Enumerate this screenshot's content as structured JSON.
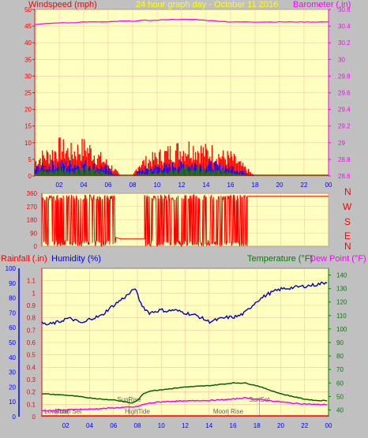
{
  "header": {
    "left_label": "Windspeed (mph)",
    "center_label": "24 hour graph day - October 11 2016",
    "right_label": "Barometer (.in)"
  },
  "dir_panel": {
    "compass_letters": [
      "N",
      "W",
      "S",
      "E",
      "N"
    ]
  },
  "bottom_header": {
    "rainfall_label": "Rainfall (.in)",
    "humidity_label": "Humidity (%)",
    "temperature_label": "Temperature (°F)",
    "dewpoint_label": "Dew Point (°F)"
  },
  "colors": {
    "bg": "#c0c0c0",
    "plot": "#ffffc0",
    "grid": "#f4c4a4",
    "wind_gust": "#ff0000",
    "wind_avg": "#0000ff",
    "wind_low": "#008000",
    "barometer": "#ff00ff",
    "humidity": "#0000c8",
    "temperature": "#006400",
    "dewpoint": "#ff00ff",
    "rain": "#ff0000",
    "direction": "#ff0000",
    "axis_red": "#ff0000",
    "axis_pink": "#ff00ff",
    "axis_blue": "#0000ff",
    "axis_green": "#008000"
  },
  "chart_data": [
    {
      "type": "line",
      "name": "wind_barometer",
      "x_ticks": [
        "02",
        "04",
        "06",
        "08",
        "10",
        "12",
        "14",
        "16",
        "18",
        "20",
        "22",
        "00"
      ],
      "x_range_hours": [
        0,
        24
      ],
      "wind_ylim": [
        0,
        50
      ],
      "wind_ticks": [
        0,
        5,
        10,
        15,
        20,
        25,
        30,
        35,
        40,
        45,
        50
      ],
      "baro_ylim": [
        28.6,
        30.6
      ],
      "baro_ticks": [
        "28.6",
        "28.8",
        "29",
        "29.2",
        "29.4",
        "29.6",
        "29.8",
        "30",
        "30.2",
        "30.4",
        "30.6"
      ],
      "barometer": {
        "x": [
          0,
          1,
          2,
          3,
          4,
          5,
          6,
          7,
          8,
          9,
          10,
          11,
          12,
          13,
          14,
          15,
          16,
          17,
          18,
          19,
          20,
          21,
          22,
          23,
          24
        ],
        "y": [
          30.42,
          30.43,
          30.44,
          30.44,
          30.45,
          30.45,
          30.45,
          30.46,
          30.46,
          30.47,
          30.47,
          30.48,
          30.48,
          30.48,
          30.47,
          30.46,
          30.45,
          30.45,
          30.45,
          30.45,
          30.45,
          30.45,
          30.45,
          30.45,
          30.45
        ]
      },
      "wind_gust_envelope": {
        "x": [
          0,
          0.5,
          1,
          1.5,
          2,
          2.5,
          3,
          3.5,
          4,
          4.5,
          5,
          5.5,
          6,
          6.5,
          7,
          7.5,
          8,
          8.5,
          9,
          9.5,
          10,
          10.5,
          11,
          11.5,
          12,
          12.5,
          13,
          13.5,
          14,
          14.5,
          15,
          15.5,
          16,
          16.5,
          17,
          17.5,
          18,
          24
        ],
        "y": [
          6,
          8,
          9,
          10,
          12,
          11,
          10,
          11,
          12,
          11,
          9,
          7,
          5,
          3,
          0,
          0,
          0,
          5,
          6,
          7,
          8,
          9,
          10,
          11,
          11,
          12,
          12,
          11,
          10,
          10,
          9,
          8,
          8,
          6,
          4,
          2,
          0,
          0
        ]
      },
      "wind_avg_envelope": {
        "x": [
          0,
          0.5,
          1,
          1.5,
          2,
          2.5,
          3,
          3.5,
          4,
          4.5,
          5,
          5.5,
          6,
          6.5,
          7,
          7.5,
          8,
          8.5,
          9,
          9.5,
          10,
          10.5,
          11,
          11.5,
          12,
          12.5,
          13,
          13.5,
          14,
          14.5,
          15,
          15.5,
          16,
          16.5,
          17,
          17.5,
          18,
          24
        ],
        "y": [
          3,
          4,
          4,
          5,
          5,
          5,
          5,
          5,
          5,
          5,
          4,
          4,
          3,
          1,
          0,
          0,
          0,
          2,
          3,
          3,
          4,
          4,
          4,
          5,
          5,
          5,
          5,
          5,
          5,
          5,
          4,
          4,
          4,
          3,
          2,
          1,
          0,
          0
        ]
      },
      "wind_low_envelope": {
        "x": [
          0,
          0.5,
          1,
          1.5,
          2,
          2.5,
          3,
          3.5,
          4,
          4.5,
          5,
          5.5,
          6,
          6.5,
          7,
          7.5,
          8,
          8.5,
          9,
          9.5,
          10,
          10.5,
          11,
          11.5,
          12,
          12.5,
          13,
          13.5,
          14,
          14.5,
          15,
          15.5,
          16,
          16.5,
          17,
          17.5,
          18,
          24
        ],
        "y": [
          1,
          2,
          2,
          2,
          3,
          3,
          2,
          3,
          3,
          3,
          2,
          2,
          1,
          0,
          0,
          0,
          0,
          1,
          1,
          2,
          2,
          2,
          2,
          2,
          3,
          3,
          3,
          3,
          2,
          2,
          2,
          2,
          2,
          1,
          1,
          0,
          0,
          0
        ]
      }
    },
    {
      "type": "line",
      "name": "wind_direction",
      "ylim": [
        0,
        360
      ],
      "y_ticks": [
        0,
        90,
        180,
        270,
        360
      ],
      "x_range_hours": [
        0,
        24
      ],
      "segments": [
        {
          "kind": "variable",
          "x_start": 0,
          "x_end": 6.2,
          "min": 0,
          "max": 350
        },
        {
          "kind": "steady",
          "x": [
            6.2,
            6.6,
            8.2,
            8.6
          ],
          "y": [
            60,
            50,
            50,
            50
          ]
        },
        {
          "kind": "variable",
          "x_start": 8.6,
          "x_end": 17.2,
          "min": 0,
          "max": 350
        },
        {
          "kind": "steady",
          "x": [
            17.2,
            17.5,
            24
          ],
          "y": [
            340,
            340,
            340
          ]
        }
      ]
    },
    {
      "type": "line",
      "name": "humidity_temp",
      "x_ticks": [
        "02",
        "04",
        "06",
        "08",
        "10",
        "12",
        "14",
        "16",
        "18",
        "20",
        "22",
        "00"
      ],
      "x_range_hours": [
        0,
        24
      ],
      "humidity_ylim": [
        0,
        100
      ],
      "humidity_ticks": [
        0,
        10,
        20,
        30,
        40,
        50,
        60,
        70,
        80,
        90,
        100
      ],
      "rain_ylim": [
        0,
        1.2
      ],
      "rain_ticks": [
        "0",
        "0.1",
        "0.2",
        "0.3",
        "0.4",
        "0.5",
        "0.6",
        "0.7",
        "0.8",
        "0.9",
        "1",
        "1.1"
      ],
      "temp_ylim": [
        35,
        145
      ],
      "temp_ticks": [
        40,
        50,
        60,
        70,
        80,
        90,
        100,
        110,
        120,
        130,
        140
      ],
      "humidity": {
        "x": [
          0,
          0.5,
          1,
          1.5,
          2,
          2.5,
          3,
          3.5,
          4,
          4.5,
          5,
          5.5,
          6,
          6.5,
          7,
          7.5,
          7.8,
          8,
          8.3,
          8.6,
          9,
          9.5,
          10,
          10.5,
          11,
          11.5,
          12,
          12.5,
          13,
          13.5,
          14,
          14.5,
          15,
          15.5,
          16,
          16.5,
          17,
          17.5,
          18,
          19,
          20,
          21,
          22,
          23,
          24
        ],
        "y": [
          63,
          62,
          63,
          64,
          66,
          66,
          64,
          63,
          66,
          67,
          68,
          72,
          75,
          78,
          81,
          84,
          87,
          82,
          76,
          73,
          70,
          71,
          72,
          71,
          72,
          71,
          70,
          69,
          68,
          66,
          64,
          65,
          66,
          67,
          67,
          68,
          70,
          74,
          78,
          83,
          86,
          87,
          88,
          89,
          91
        ]
      },
      "temperature": {
        "x": [
          0,
          1,
          2,
          3,
          4,
          5,
          6,
          7,
          7.5,
          8,
          8.5,
          9,
          10,
          11,
          12,
          13,
          14,
          15,
          16,
          17,
          18,
          19,
          20,
          21,
          22,
          23,
          24
        ],
        "y": [
          52,
          51.5,
          51,
          50,
          49,
          48,
          47.5,
          46,
          45,
          47,
          52,
          54,
          55,
          56,
          57,
          57.5,
          58,
          59,
          60,
          60,
          58,
          55,
          52,
          50,
          48,
          47,
          47
        ]
      },
      "dewpoint": {
        "x": [
          0,
          1,
          2,
          3,
          4,
          5,
          6,
          7,
          7.5,
          8,
          8.5,
          9,
          10,
          11,
          12,
          13,
          14,
          15,
          16,
          17,
          18,
          19,
          20,
          21,
          22,
          23,
          24
        ],
        "y": [
          39.5,
          39.5,
          40,
          40.5,
          40.5,
          41,
          41.5,
          42,
          42,
          42.5,
          44,
          45,
          46,
          46.5,
          46.5,
          47,
          47,
          47.5,
          48,
          49,
          48,
          47,
          46,
          45,
          44.5,
          44,
          44
        ]
      },
      "rain": {
        "x": [
          0,
          24
        ],
        "y": [
          0,
          0
        ]
      },
      "annotations": [
        {
          "label": "LowTide",
          "x": 1.2,
          "value": "Low"
        },
        {
          "label": "Moon Set",
          "x": 2.2,
          "value": "Low"
        },
        {
          "label": "SunRise",
          "x": 7.3,
          "value": "Mid"
        },
        {
          "label": "HighTide",
          "x": 8.0,
          "value": "Low"
        },
        {
          "label": "SunSet",
          "x": 18.2,
          "value": "Mid"
        },
        {
          "label": "Moon Rise",
          "x": 15.6,
          "value": "Low"
        }
      ]
    }
  ]
}
